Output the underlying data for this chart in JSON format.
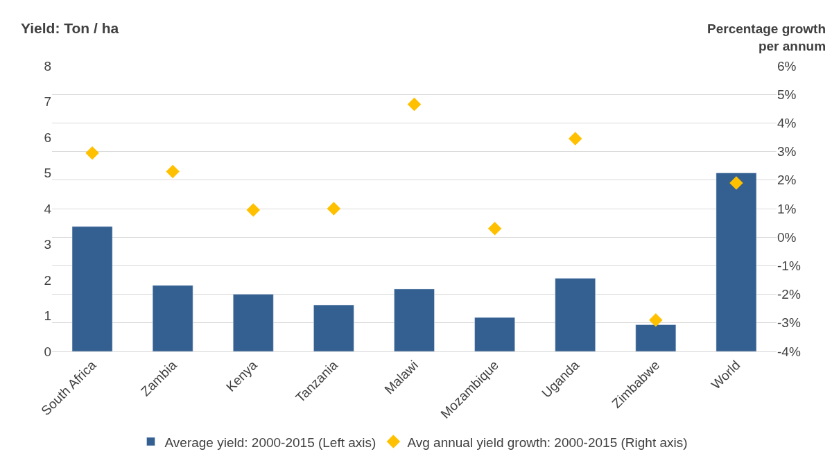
{
  "chart_data": {
    "type": "bar",
    "ylabel": "Yield: Ton / ha",
    "y2label": "Percentage growth per annum",
    "categories": [
      "South Africa",
      "Zambia",
      "Kenya",
      "Tanzania",
      "Malawi",
      "Mozambique",
      "Uganda",
      "Zimbabwe",
      "World"
    ],
    "series": [
      {
        "name": "Average yield: 2000-2015 (Left axis)",
        "color": "#335f91",
        "values": [
          3.5,
          1.85,
          1.6,
          1.3,
          1.75,
          0.95,
          2.05,
          0.75,
          5.0
        ]
      },
      {
        "name": "Avg annual yield growth: 2000-2015 (Right axis)",
        "type": "scatter",
        "axis": "y2",
        "marker": "diamond",
        "color": "#ffc000",
        "values": [
          2.95,
          2.3,
          0.95,
          1.0,
          4.65,
          0.3,
          3.45,
          -2.9,
          1.9
        ]
      }
    ],
    "ylim": [
      0,
      8
    ],
    "yticks": [
      0,
      1,
      2,
      3,
      4,
      5,
      6,
      7,
      8
    ],
    "y2lim": [
      -4,
      6
    ],
    "y2ticks": [
      {
        "value": -4,
        "label": "-4%"
      },
      {
        "value": -3,
        "label": "-3%"
      },
      {
        "value": -2,
        "label": "-2%"
      },
      {
        "value": -1,
        "label": "-1%"
      },
      {
        "value": 0,
        "label": "0%"
      },
      {
        "value": 1,
        "label": "1%"
      },
      {
        "value": 2,
        "label": "2%"
      },
      {
        "value": 3,
        "label": "3%"
      },
      {
        "value": 4,
        "label": "4%"
      },
      {
        "value": 5,
        "label": "5%"
      },
      {
        "value": 6,
        "label": "6%"
      }
    ],
    "grid": "y2",
    "legend": "bottom"
  }
}
